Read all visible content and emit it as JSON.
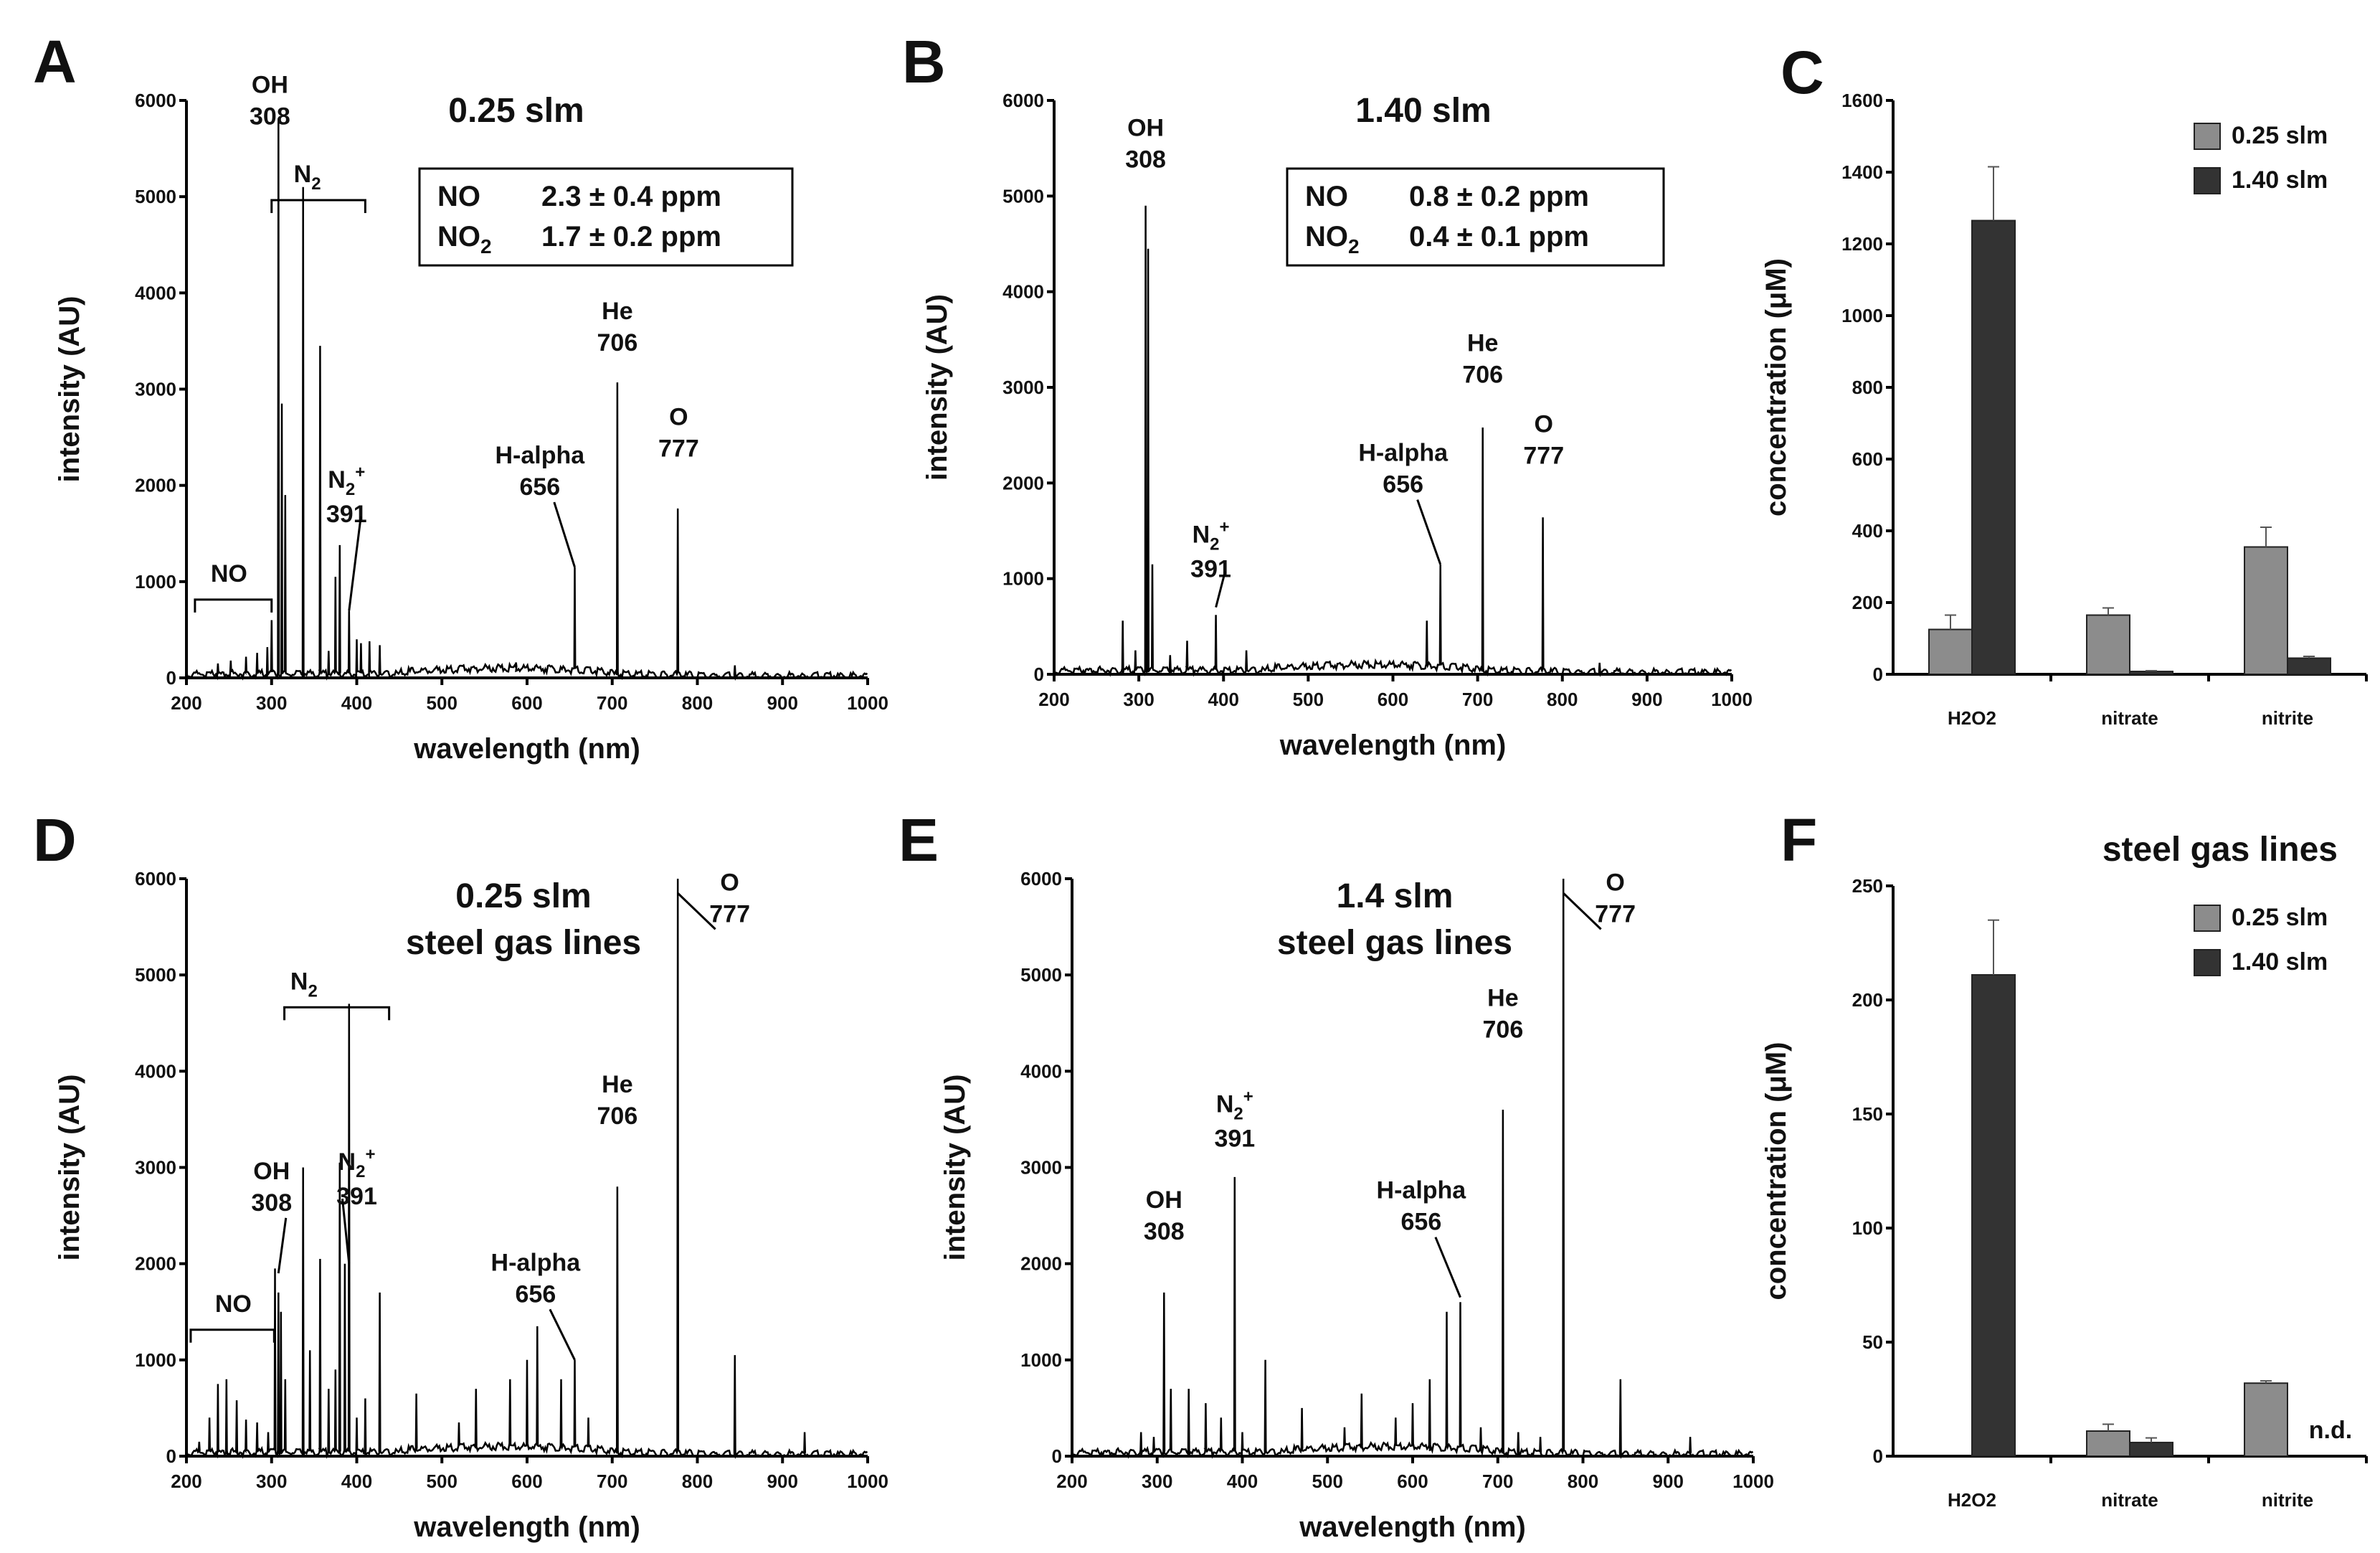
{
  "chart_data": [
    {
      "panel": "A",
      "type": "line",
      "title": "0.25 slm",
      "xlabel": "wavelength (nm)",
      "ylabel": "intensity (AU)",
      "xlim": [
        200,
        1000
      ],
      "ylim": [
        0,
        6000
      ],
      "xticks": [
        200,
        300,
        400,
        500,
        600,
        700,
        800,
        900,
        1000
      ],
      "yticks": [
        0,
        1000,
        2000,
        3000,
        4000,
        5000,
        6000
      ],
      "peaks": [
        [
          237,
          150
        ],
        [
          252,
          180
        ],
        [
          270,
          220
        ],
        [
          283,
          260
        ],
        [
          295,
          320
        ],
        [
          300,
          600
        ],
        [
          308,
          5800
        ],
        [
          312,
          2850
        ],
        [
          316,
          1900
        ],
        [
          337,
          5100
        ],
        [
          357,
          3450
        ],
        [
          367,
          280
        ],
        [
          375,
          1050
        ],
        [
          380,
          1380
        ],
        [
          391,
          700
        ],
        [
          400,
          400
        ],
        [
          405,
          360
        ],
        [
          415,
          380
        ],
        [
          427,
          340
        ],
        [
          587,
          160
        ],
        [
          656,
          1150
        ],
        [
          706,
          3070
        ],
        [
          777,
          1760
        ],
        [
          844,
          130
        ]
      ],
      "annotations": [
        {
          "name": "OH",
          "lines": [
            "OH",
            "308"
          ]
        },
        {
          "name": "N2",
          "lines": [
            "N",
            "2"
          ]
        },
        {
          "name": "N2+",
          "lines": [
            "N",
            "2",
            "+",
            "391"
          ]
        },
        {
          "name": "NO",
          "lines": [
            "NO"
          ]
        },
        {
          "name": "H-alpha",
          "lines": [
            "H-alpha",
            "656"
          ]
        },
        {
          "name": "He",
          "lines": [
            "He",
            "706"
          ]
        },
        {
          "name": "O",
          "lines": [
            "O",
            "777"
          ]
        }
      ],
      "table": [
        {
          "species": "NO",
          "sub": "",
          "value": "2.3 ± 0.4 ppm"
        },
        {
          "species": "NO",
          "sub": "2",
          "value": "1.7 ± 0.2 ppm"
        }
      ]
    },
    {
      "panel": "B",
      "type": "line",
      "title": "1.40 slm",
      "xlabel": "wavelength (nm)",
      "ylabel": "intensity (AU)",
      "xlim": [
        200,
        1000
      ],
      "ylim": [
        0,
        6000
      ],
      "xticks": [
        200,
        300,
        400,
        500,
        600,
        700,
        800,
        900,
        1000
      ],
      "yticks": [
        0,
        1000,
        2000,
        3000,
        4000,
        5000,
        6000
      ],
      "peaks": [
        [
          281,
          560
        ],
        [
          296,
          250
        ],
        [
          308,
          4900
        ],
        [
          311,
          4450
        ],
        [
          316,
          1150
        ],
        [
          337,
          200
        ],
        [
          357,
          350
        ],
        [
          391,
          620
        ],
        [
          427,
          250
        ],
        [
          640,
          560
        ],
        [
          656,
          1150
        ],
        [
          706,
          2580
        ],
        [
          777,
          1640
        ],
        [
          844,
          120
        ]
      ],
      "annotations": [
        {
          "name": "OH",
          "lines": [
            "OH",
            "308"
          ]
        },
        {
          "name": "N2+",
          "lines": [
            "N",
            "2",
            "+",
            "391"
          ]
        },
        {
          "name": "H-alpha",
          "lines": [
            "H-alpha",
            "656"
          ]
        },
        {
          "name": "He",
          "lines": [
            "He",
            "706"
          ]
        },
        {
          "name": "O",
          "lines": [
            "O",
            "777"
          ]
        }
      ],
      "table": [
        {
          "species": "NO",
          "sub": "",
          "value": "0.8 ± 0.2 ppm"
        },
        {
          "species": "NO",
          "sub": "2",
          "value": "0.4 ± 0.1 ppm"
        }
      ]
    },
    {
      "panel": "C",
      "type": "bar",
      "title": "",
      "categories": [
        "H2O2",
        "nitrate",
        "nitrite"
      ],
      "series": [
        {
          "name": "0.25 slm",
          "color": "#8c8c8c",
          "values": [
            125,
            165,
            355
          ],
          "errors": [
            40,
            20,
            55
          ]
        },
        {
          "name": "1.40 slm",
          "color": "#333333",
          "values": [
            1265,
            8,
            45
          ],
          "errors": [
            150,
            2,
            5
          ]
        }
      ],
      "ylabel": "concentration (μM)",
      "ylim": [
        0,
        1600
      ],
      "yticks": [
        0,
        200,
        400,
        600,
        800,
        1000,
        1200,
        1400,
        1600
      ],
      "na_labels": []
    },
    {
      "panel": "D",
      "type": "line",
      "title": "0.25 slm",
      "subtitle": "steel gas lines",
      "xlabel": "wavelength (nm)",
      "ylabel": "intensity (AU)",
      "xlim": [
        200,
        1000
      ],
      "ylim": [
        0,
        6000
      ],
      "xticks": [
        200,
        300,
        400,
        500,
        600,
        700,
        800,
        900,
        1000
      ],
      "yticks": [
        0,
        1000,
        2000,
        3000,
        4000,
        5000,
        6000
      ],
      "peaks": [
        [
          215,
          150
        ],
        [
          227,
          400
        ],
        [
          237,
          750
        ],
        [
          247,
          800
        ],
        [
          259,
          580
        ],
        [
          270,
          380
        ],
        [
          283,
          350
        ],
        [
          296,
          250
        ],
        [
          304,
          1950
        ],
        [
          308,
          1700
        ],
        [
          311,
          1500
        ],
        [
          316,
          800
        ],
        [
          337,
          3000
        ],
        [
          345,
          1100
        ],
        [
          357,
          2050
        ],
        [
          367,
          700
        ],
        [
          375,
          900
        ],
        [
          380,
          3050
        ],
        [
          386,
          2000
        ],
        [
          391,
          4700
        ],
        [
          400,
          400
        ],
        [
          410,
          600
        ],
        [
          427,
          1700
        ],
        [
          470,
          650
        ],
        [
          520,
          350
        ],
        [
          540,
          700
        ],
        [
          580,
          800
        ],
        [
          600,
          1000
        ],
        [
          612,
          1350
        ],
        [
          640,
          800
        ],
        [
          656,
          1000
        ],
        [
          672,
          400
        ],
        [
          706,
          2800
        ],
        [
          777,
          6000
        ],
        [
          844,
          1050
        ],
        [
          926,
          250
        ]
      ],
      "annotations": [
        {
          "name": "OH",
          "lines": [
            "OH",
            "308"
          ]
        },
        {
          "name": "N2",
          "lines": [
            "N",
            "2"
          ]
        },
        {
          "name": "N2+",
          "lines": [
            "N",
            "2",
            "+",
            "391"
          ]
        },
        {
          "name": "NO",
          "lines": [
            "NO"
          ]
        },
        {
          "name": "H-alpha",
          "lines": [
            "H-alpha",
            "656"
          ]
        },
        {
          "name": "He",
          "lines": [
            "He",
            "706"
          ]
        },
        {
          "name": "O",
          "lines": [
            "O",
            "777"
          ]
        }
      ],
      "table": []
    },
    {
      "panel": "E",
      "type": "line",
      "title": "1.4 slm",
      "subtitle": "steel gas lines",
      "xlabel": "wavelength (nm)",
      "ylabel": "intensity (AU)",
      "xlim": [
        200,
        1000
      ],
      "ylim": [
        0,
        6000
      ],
      "xticks": [
        200,
        300,
        400,
        500,
        600,
        700,
        800,
        900,
        1000
      ],
      "yticks": [
        0,
        1000,
        2000,
        3000,
        4000,
        5000,
        6000
      ],
      "peaks": [
        [
          281,
          250
        ],
        [
          296,
          200
        ],
        [
          308,
          1700
        ],
        [
          316,
          700
        ],
        [
          337,
          700
        ],
        [
          357,
          550
        ],
        [
          375,
          400
        ],
        [
          391,
          2900
        ],
        [
          400,
          250
        ],
        [
          427,
          1000
        ],
        [
          470,
          500
        ],
        [
          520,
          300
        ],
        [
          540,
          650
        ],
        [
          580,
          400
        ],
        [
          600,
          550
        ],
        [
          620,
          800
        ],
        [
          640,
          1500
        ],
        [
          656,
          1600
        ],
        [
          680,
          300
        ],
        [
          706,
          3600
        ],
        [
          724,
          250
        ],
        [
          750,
          200
        ],
        [
          777,
          6000
        ],
        [
          844,
          800
        ],
        [
          926,
          200
        ]
      ],
      "annotations": [
        {
          "name": "OH",
          "lines": [
            "OH",
            "308"
          ]
        },
        {
          "name": "N2+",
          "lines": [
            "N",
            "2",
            "+",
            "391"
          ]
        },
        {
          "name": "H-alpha",
          "lines": [
            "H-alpha",
            "656"
          ]
        },
        {
          "name": "He",
          "lines": [
            "He",
            "706"
          ]
        },
        {
          "name": "O",
          "lines": [
            "O",
            "777"
          ]
        }
      ],
      "table": []
    },
    {
      "panel": "F",
      "type": "bar",
      "title": "steel gas lines",
      "categories": [
        "H2O2",
        "nitrate",
        "nitrite"
      ],
      "series": [
        {
          "name": "0.25 slm",
          "color": "#8c8c8c",
          "values": [
            0,
            11,
            32
          ],
          "errors": [
            0,
            3,
            1
          ]
        },
        {
          "name": "1.40 slm",
          "color": "#333333",
          "values": [
            211,
            6,
            0
          ],
          "errors": [
            24,
            2,
            0
          ]
        }
      ],
      "ylabel": "concentration (μM)",
      "ylim": [
        0,
        250
      ],
      "yticks": [
        0,
        50,
        100,
        150,
        200,
        250
      ],
      "na_labels": [
        {
          "category": "nitrite",
          "text": "n.d."
        }
      ]
    }
  ]
}
